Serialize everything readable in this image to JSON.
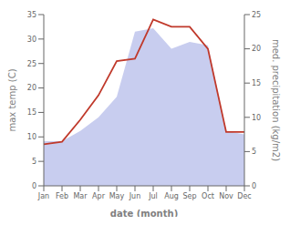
{
  "chart_data": {
    "type": "line",
    "xlabel": "date (month)",
    "ylabel": "max temp (C)",
    "y2label": "med. precipitation (kg/m2)",
    "categories": [
      "Jan",
      "Feb",
      "Mar",
      "Apr",
      "May",
      "Jun",
      "Jul",
      "Aug",
      "Sep",
      "Oct",
      "Nov",
      "Dec"
    ],
    "series": [
      {
        "type": "area",
        "axis": "y2",
        "color": "#b0b8e8",
        "values": [
          6.5,
          6.5,
          8.0,
          10.0,
          13.0,
          22.5,
          23.0,
          20.0,
          21.0,
          20.5,
          8.0,
          7.5
        ]
      },
      {
        "type": "line",
        "color": "#c0392b",
        "values": [
          8.5,
          9.0,
          13.5,
          18.5,
          25.5,
          26.0,
          34.0,
          32.5,
          32.5,
          28.0,
          11.0,
          11.0
        ]
      }
    ],
    "ylim": [
      0,
      35
    ],
    "yticks": [
      0,
      5,
      10,
      15,
      20,
      25,
      30,
      35
    ],
    "y2lim": [
      0,
      25
    ],
    "y2ticks": [
      0,
      5,
      10,
      15,
      20,
      25
    ],
    "grid": false
  }
}
